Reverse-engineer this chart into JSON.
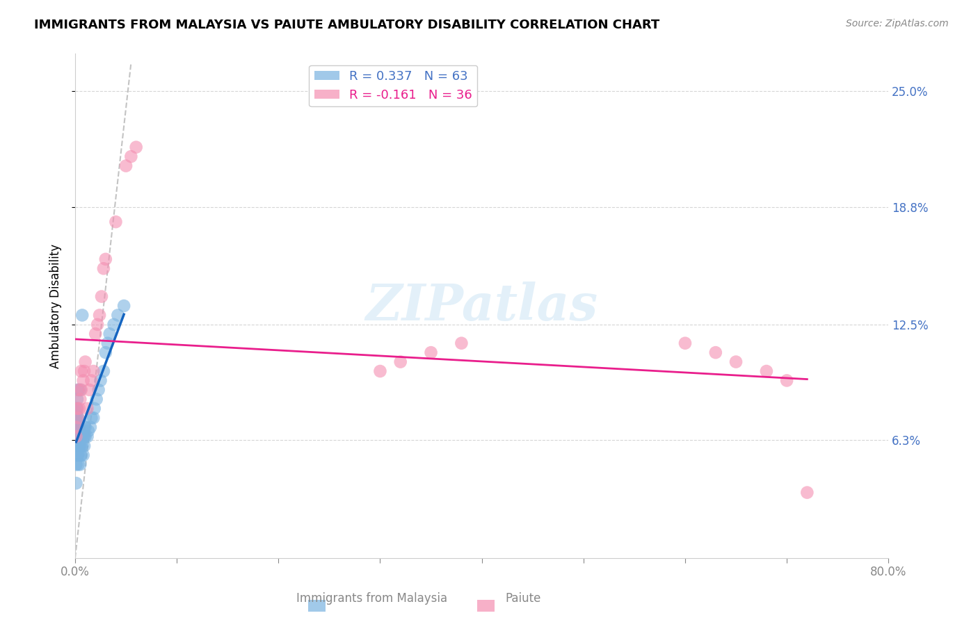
{
  "title": "IMMIGRANTS FROM MALAYSIA VS PAIUTE AMBULATORY DISABILITY CORRELATION CHART",
  "source": "Source: ZipAtlas.com",
  "ylabel": "Ambulatory Disability",
  "ytick_labels": [
    "25.0%",
    "18.8%",
    "12.5%",
    "6.3%"
  ],
  "ytick_values": [
    0.25,
    0.188,
    0.125,
    0.063
  ],
  "xlim": [
    0.0,
    0.8
  ],
  "ylim": [
    0.0,
    0.27
  ],
  "legend_R1": "0.337",
  "legend_N1": "63",
  "legend_R2": "-0.161",
  "legend_N2": "36",
  "color_blue": "#7ab3e0",
  "color_pink": "#f48fb1",
  "color_trendline_blue": "#1565c0",
  "color_trendline_pink": "#e91e8c",
  "color_dashed": "#aaaaaa",
  "watermark_text": "ZIPatlas",
  "blue_points_x": [
    0.001,
    0.001,
    0.001,
    0.001,
    0.001,
    0.001,
    0.001,
    0.001,
    0.001,
    0.001,
    0.002,
    0.002,
    0.002,
    0.002,
    0.002,
    0.002,
    0.002,
    0.002,
    0.002,
    0.002,
    0.003,
    0.003,
    0.003,
    0.003,
    0.003,
    0.003,
    0.003,
    0.004,
    0.004,
    0.004,
    0.005,
    0.005,
    0.005,
    0.005,
    0.005,
    0.006,
    0.006,
    0.006,
    0.007,
    0.007,
    0.008,
    0.008,
    0.009,
    0.009,
    0.009,
    0.01,
    0.01,
    0.012,
    0.013,
    0.015,
    0.016,
    0.018,
    0.019,
    0.021,
    0.023,
    0.025,
    0.028,
    0.03,
    0.032,
    0.034,
    0.038,
    0.042,
    0.048
  ],
  "blue_points_y": [
    0.04,
    0.05,
    0.06,
    0.065,
    0.068,
    0.07,
    0.072,
    0.075,
    0.078,
    0.08,
    0.055,
    0.06,
    0.062,
    0.065,
    0.068,
    0.07,
    0.073,
    0.076,
    0.08,
    0.085,
    0.05,
    0.055,
    0.06,
    0.065,
    0.07,
    0.075,
    0.09,
    0.06,
    0.065,
    0.07,
    0.05,
    0.055,
    0.06,
    0.065,
    0.09,
    0.055,
    0.06,
    0.065,
    0.06,
    0.13,
    0.055,
    0.065,
    0.06,
    0.065,
    0.07,
    0.065,
    0.07,
    0.065,
    0.068,
    0.07,
    0.075,
    0.075,
    0.08,
    0.085,
    0.09,
    0.095,
    0.1,
    0.11,
    0.115,
    0.12,
    0.125,
    0.13,
    0.135
  ],
  "pink_points_x": [
    0.001,
    0.001,
    0.002,
    0.003,
    0.003,
    0.004,
    0.005,
    0.006,
    0.006,
    0.008,
    0.009,
    0.01,
    0.012,
    0.014,
    0.016,
    0.018,
    0.02,
    0.022,
    0.024,
    0.026,
    0.028,
    0.03,
    0.04,
    0.05,
    0.055,
    0.06,
    0.3,
    0.32,
    0.35,
    0.38,
    0.6,
    0.63,
    0.65,
    0.68,
    0.7,
    0.72
  ],
  "pink_points_y": [
    0.065,
    0.07,
    0.08,
    0.075,
    0.09,
    0.08,
    0.085,
    0.09,
    0.1,
    0.095,
    0.1,
    0.105,
    0.08,
    0.09,
    0.095,
    0.1,
    0.12,
    0.125,
    0.13,
    0.14,
    0.155,
    0.16,
    0.18,
    0.21,
    0.215,
    0.22,
    0.1,
    0.105,
    0.11,
    0.115,
    0.115,
    0.11,
    0.105,
    0.1,
    0.095,
    0.035
  ]
}
